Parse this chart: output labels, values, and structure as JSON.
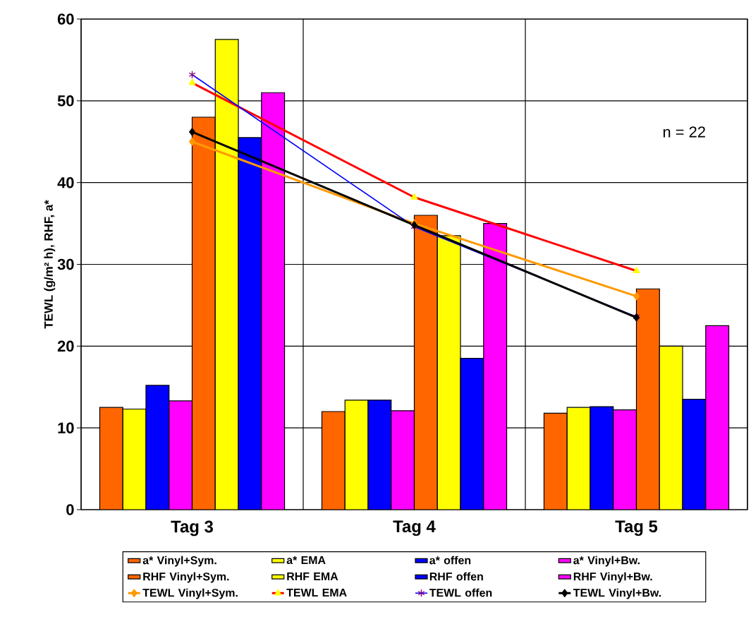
{
  "chart_data": {
    "type": "bar",
    "ylabel": "TEWL (g/m² h), RHF,  a*",
    "categories": [
      "Tag 3",
      "Tag 4",
      "Tag 5"
    ],
    "series": [
      {
        "name": "a* Vinyl+Sym.",
        "color": "#ff6600",
        "values": [
          12.5,
          12.0,
          11.8
        ]
      },
      {
        "name": "a* EMA",
        "color": "#ffff00",
        "values": [
          12.3,
          13.4,
          12.5
        ]
      },
      {
        "name": "a* offen",
        "color": "#0000ff",
        "values": [
          15.2,
          13.4,
          12.6
        ]
      },
      {
        "name": "a* Vinyl+Bw.",
        "color": "#ff00ff",
        "values": [
          13.3,
          12.1,
          12.2
        ]
      },
      {
        "name": "RHF Vinyl+Sym.",
        "color": "#ff6600",
        "values": [
          48.0,
          36.0,
          27.0
        ]
      },
      {
        "name": "RHF EMA",
        "color": "#ffff00",
        "values": [
          57.5,
          33.5,
          20.0
        ]
      },
      {
        "name": "RHF offen",
        "color": "#0000ff",
        "values": [
          45.5,
          18.5,
          13.5
        ]
      },
      {
        "name": "RHF Vinyl+Bw.",
        "color": "#ff00ff",
        "values": [
          51.0,
          35.0,
          22.5
        ]
      },
      {
        "name": "TEWL Vinyl+Sym.",
        "type": "line",
        "marker": "diamond",
        "color": "#ff9900",
        "colors": [
          "#ff9900",
          "#ff9900",
          "#ff9900"
        ],
        "values": [
          45.0,
          35.0,
          26.1
        ]
      },
      {
        "name": "TEWL EMA",
        "type": "line",
        "marker": "triangle",
        "color": "#ff0000",
        "colors": [
          "#ffff00",
          "#ffff00",
          "#ffff00"
        ],
        "values": [
          52.2,
          38.2,
          29.2
        ]
      },
      {
        "name": "TEWL offen",
        "type": "line",
        "marker": "cross",
        "color": "#0000ff",
        "colors": [
          "#800080",
          "#800080",
          "#800080"
        ],
        "values": [
          53.2,
          34.6,
          23.6
        ]
      },
      {
        "name": "TEWL Vinyl+Bw.",
        "type": "line",
        "marker": "diamond",
        "color": "#000000",
        "colors": [
          "#000000",
          "#000000",
          "#000000"
        ],
        "values": [
          46.2,
          34.8,
          23.5
        ]
      }
    ],
    "ylim": [
      0,
      60
    ],
    "yticks": [
      0,
      10,
      20,
      30,
      40,
      50,
      60
    ],
    "grid": true,
    "legend": "bottom",
    "annotations": [
      {
        "text": "n = 22"
      }
    ]
  }
}
